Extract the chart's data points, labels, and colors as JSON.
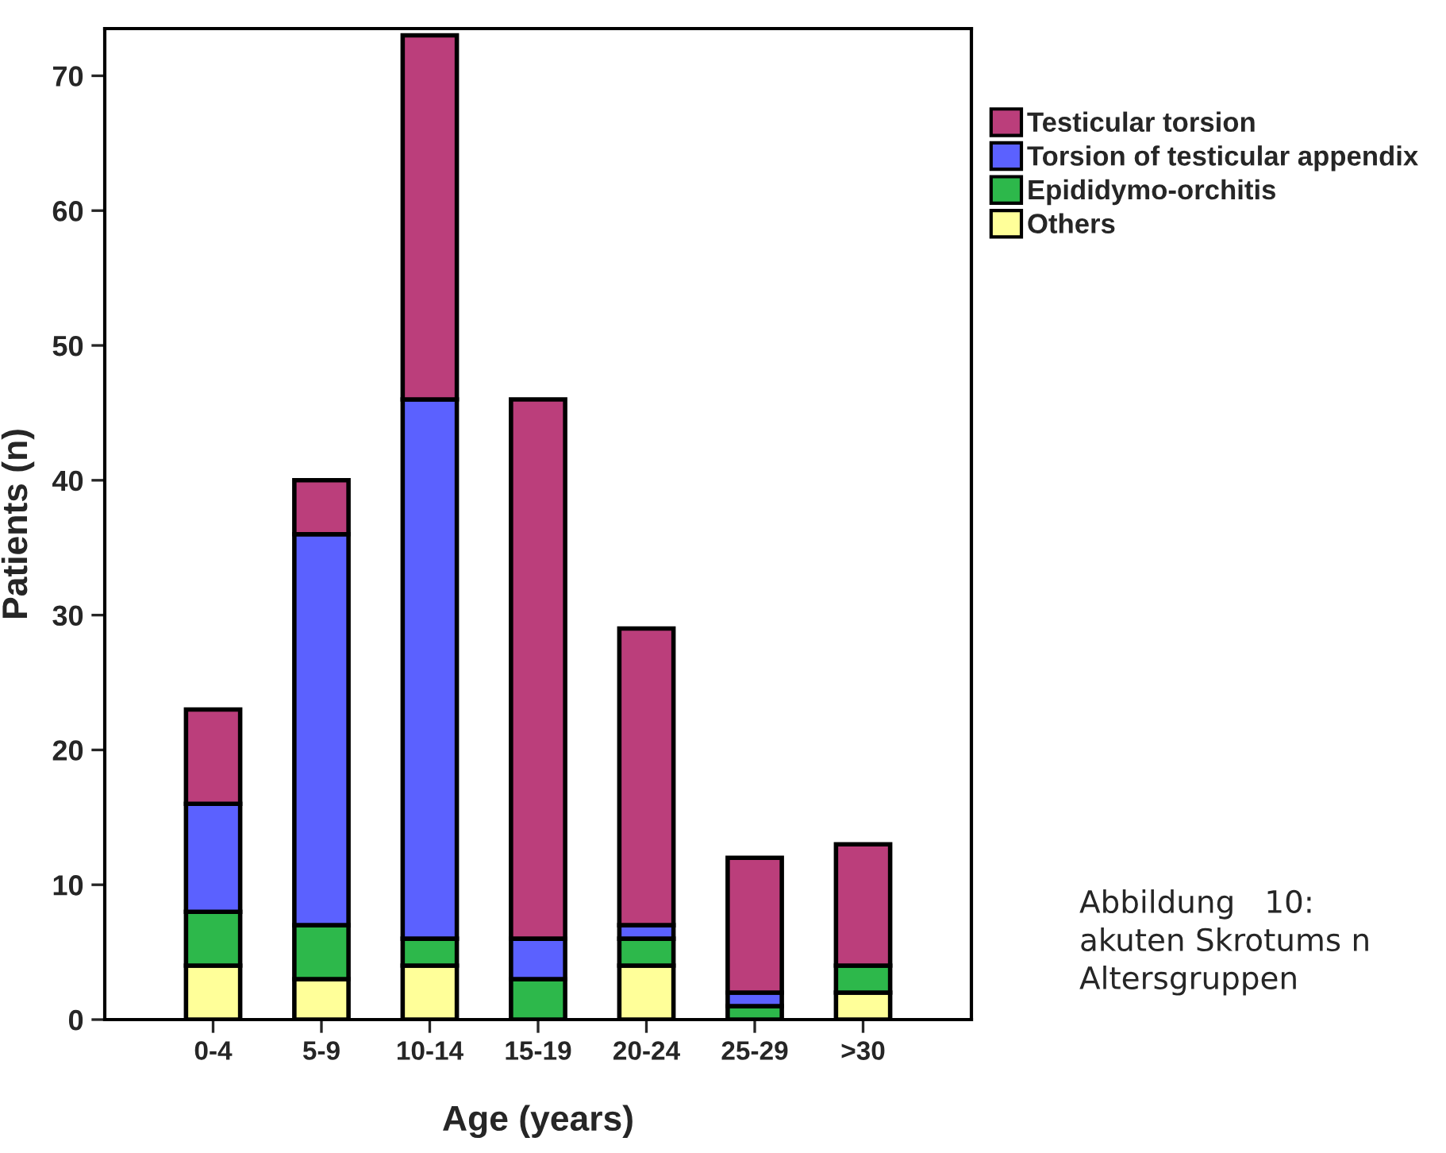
{
  "chart_data": {
    "type": "bar",
    "stacked": true,
    "xlabel": "Age (years)",
    "ylabel": "Patients (n)",
    "categories": [
      "0-4",
      "5-9",
      "10-14",
      "15-19",
      "20-24",
      "25-29",
      ">30"
    ],
    "series": [
      {
        "name": "Others",
        "color": "#ffff99",
        "values": [
          4,
          3,
          4,
          0,
          4,
          0,
          2
        ]
      },
      {
        "name": "Epididymo-orchitis",
        "color": "#2db84b",
        "values": [
          4,
          4,
          2,
          3,
          2,
          1,
          2
        ]
      },
      {
        "name": "Torsion of testicular appendix",
        "color": "#5b61ff",
        "values": [
          8,
          29,
          40,
          3,
          1,
          1,
          0
        ]
      },
      {
        "name": "Testicular torsion",
        "color": "#bb3e7b",
        "values": [
          7,
          4,
          27,
          40,
          22,
          10,
          9
        ]
      }
    ],
    "ylim": [
      0,
      73.5
    ],
    "yticks": [
      0,
      10,
      20,
      30,
      40,
      50,
      60,
      70
    ],
    "grid": false,
    "legend": "right",
    "annotations": [
      "Abbildung   10:\nakuten Skrotums n\nAltersgruppen"
    ]
  }
}
